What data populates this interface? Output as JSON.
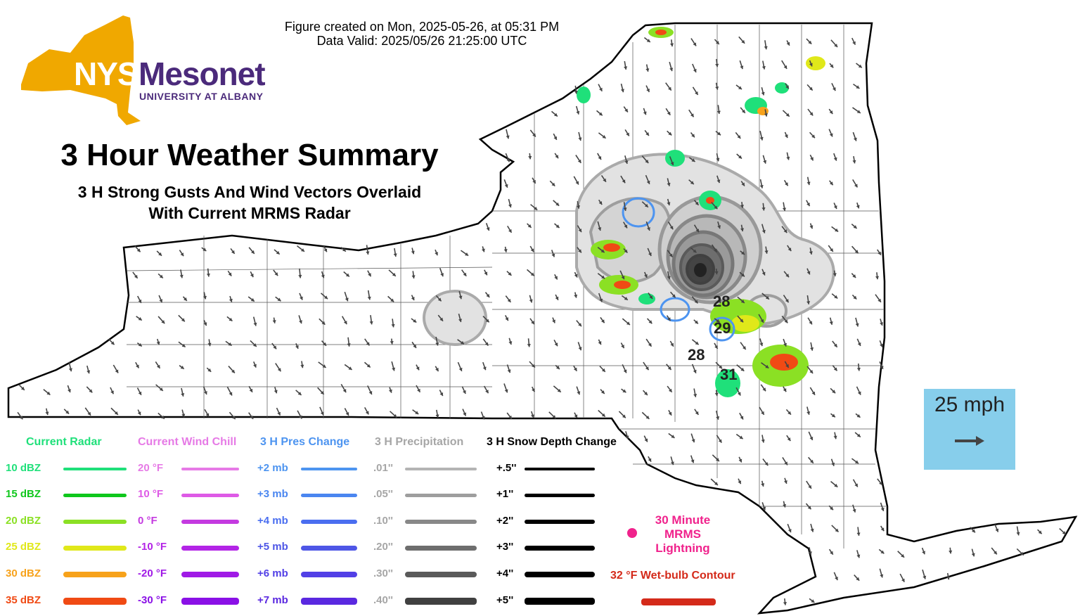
{
  "header": {
    "created": "Figure created on Mon, 2025-05-26, at 05:31 PM",
    "valid": "Data Valid: 2025/05/26 21:25:00 UTC"
  },
  "logo": {
    "nys": "NYS",
    "mesonet": "Mesonet",
    "university": "UNIVERSITY AT ALBANY",
    "colors": {
      "state_shape": "#f0a800",
      "text_purple": "#4b2a7b"
    }
  },
  "title": {
    "main": "3 Hour Weather Summary",
    "line1": "3 H Strong Gusts And Wind Vectors Overlaid",
    "line2": "With Current MRMS Radar"
  },
  "gust_labels": [
    "28",
    "29",
    "28",
    "31"
  ],
  "scale": {
    "label": "25 mph",
    "icon": "arrow-right-icon",
    "color": "#87ceeb"
  },
  "legend": {
    "radar": {
      "title": "Current Radar",
      "title_color": "#1fe07a",
      "items": [
        {
          "label": "10 dBZ",
          "color": "#1fe07a"
        },
        {
          "label": "15 dBZ",
          "color": "#0fc71c"
        },
        {
          "label": "20 dBZ",
          "color": "#8be024"
        },
        {
          "label": "25 dBZ",
          "color": "#e0e81a"
        },
        {
          "label": "30 dBZ",
          "color": "#f7a21b"
        },
        {
          "label": "35 dBZ",
          "color": "#f04a14"
        }
      ]
    },
    "wind_chill": {
      "title": "Current Wind Chill",
      "title_color": "#e67ae6",
      "items": [
        {
          "label": "20 °F",
          "color": "#e67ae6"
        },
        {
          "label": "10 °F",
          "color": "#de5ae6"
        },
        {
          "label": "0 °F",
          "color": "#c43ae0"
        },
        {
          "label": "-10 °F",
          "color": "#b324e6"
        },
        {
          "label": "-20 °F",
          "color": "#a01ae6"
        },
        {
          "label": "-30 °F",
          "color": "#8a10e6"
        }
      ]
    },
    "pressure": {
      "title": "3 H Pres Change",
      "title_color": "#4d94f0",
      "items": [
        {
          "label": "+2 mb",
          "color": "#4d94f0"
        },
        {
          "label": "+3 mb",
          "color": "#4a86f0"
        },
        {
          "label": "+4 mb",
          "color": "#4a6ef0"
        },
        {
          "label": "+5 mb",
          "color": "#4e56e6"
        },
        {
          "label": "+6 mb",
          "color": "#5240e6"
        },
        {
          "label": "+7 mb",
          "color": "#5a28e0"
        }
      ]
    },
    "precip": {
      "title": "3 H Precipitation",
      "title_color": "#a6a6a6",
      "items": [
        {
          "label": ".01''",
          "color": "#b4b4b4"
        },
        {
          "label": ".05''",
          "color": "#9e9e9e"
        },
        {
          "label": ".10''",
          "color": "#888888"
        },
        {
          "label": ".20''",
          "color": "#6e6e6e"
        },
        {
          "label": ".30''",
          "color": "#5a5a5a"
        },
        {
          "label": ".40''",
          "color": "#404040"
        }
      ]
    },
    "snow": {
      "title": "3 H Snow Depth Change",
      "title_color": "#000000",
      "items": [
        {
          "label": "+.5''",
          "color": "#000000"
        },
        {
          "label": "+1''",
          "color": "#000000"
        },
        {
          "label": "+2''",
          "color": "#000000"
        },
        {
          "label": "+3''",
          "color": "#000000"
        },
        {
          "label": "+4''",
          "color": "#000000"
        },
        {
          "label": "+5''",
          "color": "#000000"
        }
      ]
    },
    "lightning": {
      "label": "30 Minute MRMS Lightning",
      "color": "#f0228c"
    },
    "wetbulb": {
      "label": "32 °F Wet-bulb Contour",
      "color": "#d42a1a"
    }
  }
}
